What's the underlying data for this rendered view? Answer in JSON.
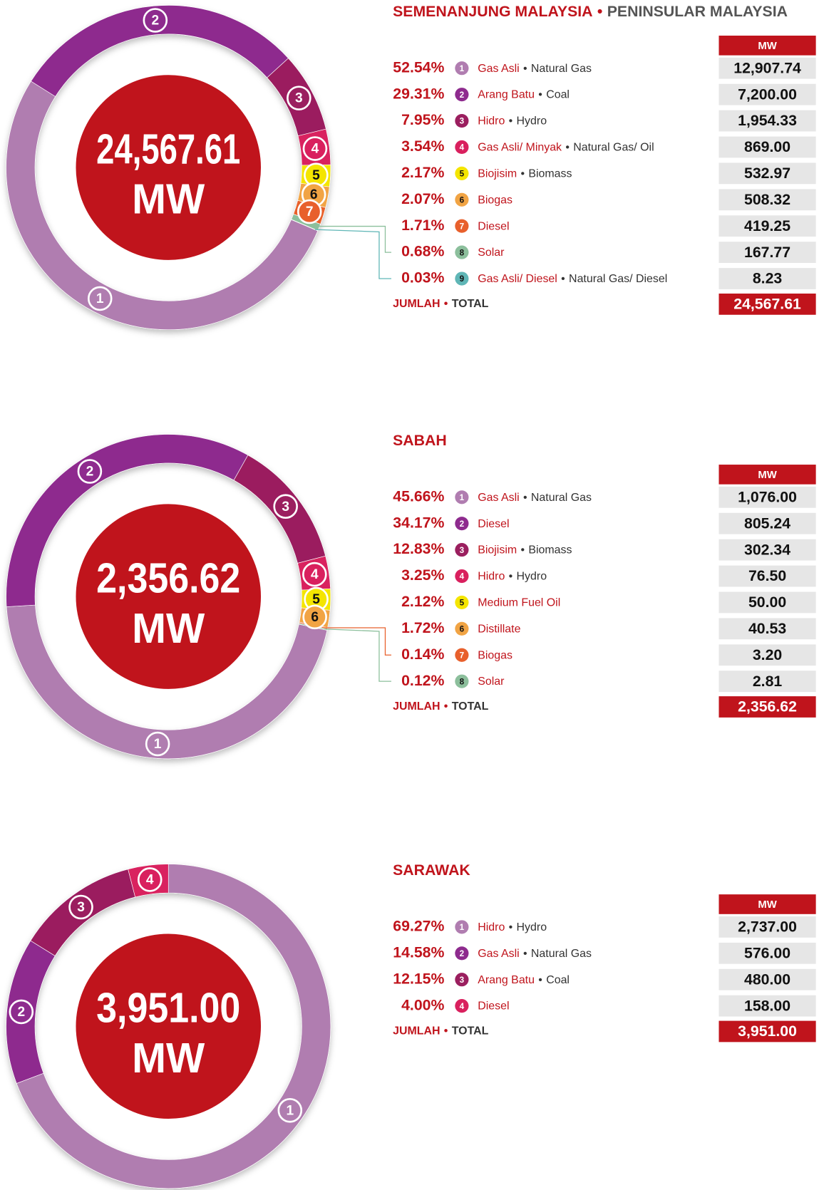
{
  "chart_data": [
    {
      "type": "pie",
      "title": "SEMENANJUNG MALAYSIA",
      "title_en": "PENINSULAR MALAYSIA",
      "separator": "•",
      "unit": "MW",
      "numbers": [
        1,
        2,
        3,
        4,
        5,
        6,
        7,
        8,
        9
      ],
      "categories": [
        "Gas Asli",
        "Arang Batu",
        "Hidro",
        "Gas Asli/ Minyak",
        "Biojisim",
        "Biogas",
        "Diesel",
        "Solar",
        "Gas Asli/ Diesel"
      ],
      "categories_en": [
        "Natural Gas",
        "Coal",
        "Hydro",
        "Natural Gas/ Oil",
        "Biomass",
        null,
        null,
        null,
        "Natural Gas/ Diesel"
      ],
      "values": [
        52.54,
        29.31,
        7.95,
        3.54,
        2.17,
        2.07,
        1.71,
        0.68,
        0.03
      ],
      "value_labels": [
        "52.54%",
        "29.31%",
        "7.95%",
        "3.54%",
        "2.17%",
        "2.07%",
        "1.71%",
        "0.68%",
        "0.03%"
      ],
      "mw": [
        12907.74,
        7200.0,
        1954.33,
        869.0,
        532.97,
        508.32,
        419.25,
        167.77,
        8.23
      ],
      "mw_labels": [
        "12,907.74",
        "7,200.00",
        "1,954.33",
        "869.00",
        "532.97",
        "508.32",
        "419.25",
        "167.77",
        "8.23"
      ],
      "colors": [
        "#b07db0",
        "#8e2b8e",
        "#9b1f5f",
        "#d9205e",
        "#f4e500",
        "#f1a444",
        "#e8602c",
        "#8cbf9c",
        "#5fb6b6"
      ],
      "total_text": "JUMLAH",
      "total_text_en": "TOTAL",
      "total": 24567.61,
      "total_label": "24,567.61"
    },
    {
      "type": "pie",
      "title": "SABAH",
      "separator": "•",
      "unit": "MW",
      "numbers": [
        1,
        2,
        3,
        4,
        5,
        6,
        7,
        8
      ],
      "categories": [
        "Gas Asli",
        "Diesel",
        "Biojisim",
        "Hidro",
        "Medium Fuel Oil",
        "Distillate",
        "Biogas",
        "Solar"
      ],
      "categories_en": [
        "Natural Gas",
        null,
        "Biomass",
        "Hydro",
        null,
        null,
        null,
        null
      ],
      "values": [
        45.66,
        34.17,
        12.83,
        3.25,
        2.12,
        1.72,
        0.14,
        0.12
      ],
      "value_labels": [
        "45.66%",
        "34.17%",
        "12.83%",
        "3.25%",
        "2.12%",
        "1.72%",
        "0.14%",
        "0.12%"
      ],
      "mw": [
        1076.0,
        805.24,
        302.34,
        76.5,
        50.0,
        40.53,
        3.2,
        2.81
      ],
      "mw_labels": [
        "1,076.00",
        "805.24",
        "302.34",
        "76.50",
        "50.00",
        "40.53",
        "3.20",
        "2.81"
      ],
      "colors": [
        "#b07db0",
        "#8e2b8e",
        "#9b1f5f",
        "#d9205e",
        "#f4e500",
        "#f1a444",
        "#e8602c",
        "#8cbf9c"
      ],
      "total_text": "JUMLAH",
      "total_text_en": "TOTAL",
      "total": 2356.62,
      "total_label": "2,356.62"
    },
    {
      "type": "pie",
      "title": "SARAWAK",
      "separator": "•",
      "unit": "MW",
      "numbers": [
        1,
        2,
        3,
        4
      ],
      "categories": [
        "Hidro",
        "Gas Asli",
        "Arang Batu",
        "Diesel"
      ],
      "categories_en": [
        "Hydro",
        "Natural Gas",
        "Coal",
        null
      ],
      "values": [
        69.27,
        14.58,
        12.15,
        4.0
      ],
      "value_labels": [
        "69.27%",
        "14.58%",
        "12.15%",
        "4.00%"
      ],
      "mw": [
        2737.0,
        576.0,
        480.0,
        158.0
      ],
      "mw_labels": [
        "2,737.00",
        "576.00",
        "480.00",
        "158.00"
      ],
      "colors": [
        "#b07db0",
        "#8e2b8e",
        "#9b1f5f",
        "#d9205e"
      ],
      "total_text": "JUMLAH",
      "total_text_en": "TOTAL",
      "total": 3951.0,
      "total_label": "3,951.00"
    }
  ]
}
